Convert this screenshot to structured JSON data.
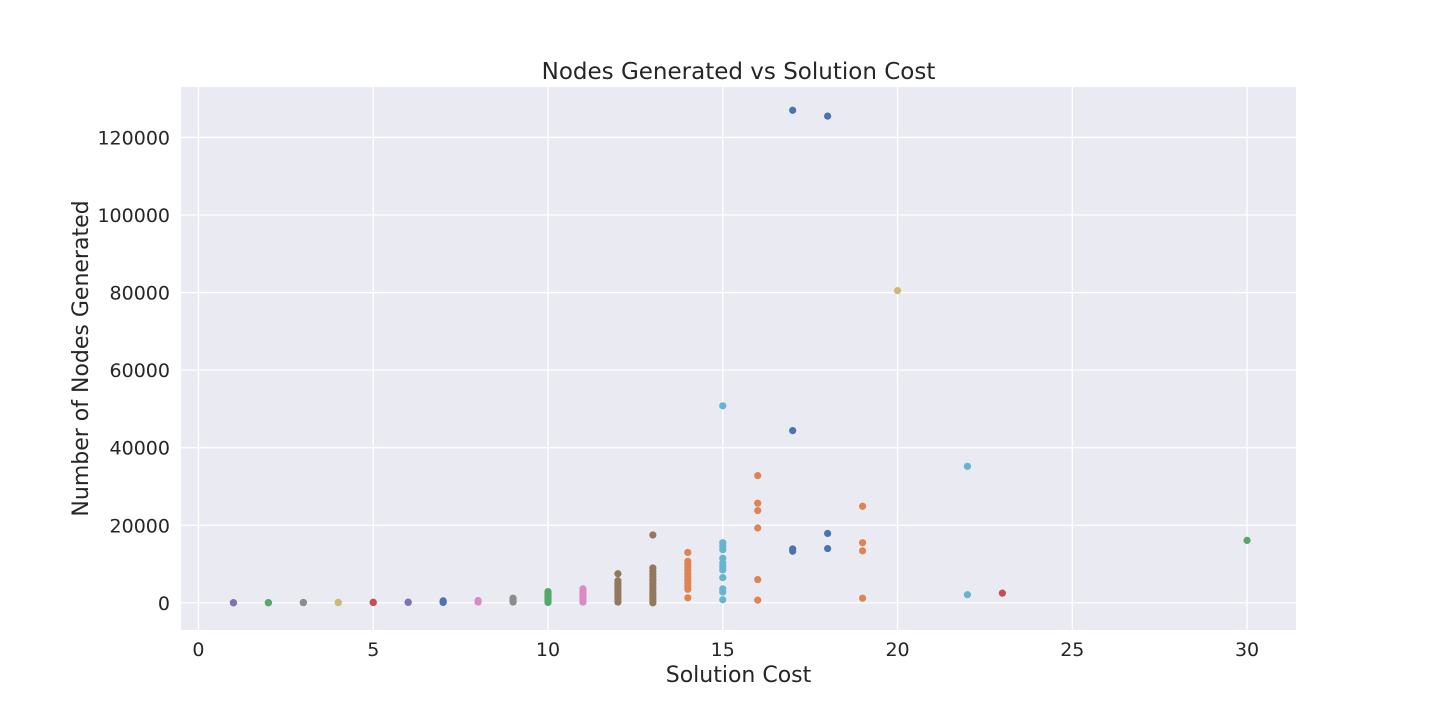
{
  "chart_data": {
    "type": "scatter",
    "title": "Nodes Generated vs Solution Cost",
    "xlabel": "Solution Cost",
    "ylabel": "Number of Nodes Generated",
    "xlim": [
      -0.5,
      31.4
    ],
    "ylim": [
      -7000,
      133000
    ],
    "xticks": [
      0,
      5,
      10,
      15,
      20,
      25,
      30
    ],
    "yticks": [
      0,
      20000,
      40000,
      60000,
      80000,
      100000,
      120000
    ],
    "grid": true,
    "legend": "none",
    "colors": {
      "background": "#eaeaf2",
      "grid": "#ffffff",
      "palette": [
        "#4c72b0",
        "#dd8452",
        "#55a868",
        "#c44e52",
        "#8172b3",
        "#937860",
        "#da8bc3",
        "#8c8c8c",
        "#ccb974",
        "#64b5cd"
      ]
    },
    "series": [
      {
        "color": "#8172b3",
        "points": [
          [
            1,
            0
          ],
          [
            1,
            50
          ]
        ]
      },
      {
        "color": "#55a868",
        "points": [
          [
            2,
            20
          ],
          [
            2,
            60
          ]
        ]
      },
      {
        "color": "#8c8c8c",
        "points": [
          [
            3,
            40
          ],
          [
            3,
            100
          ]
        ]
      },
      {
        "color": "#ccb974",
        "points": [
          [
            4,
            60
          ],
          [
            4,
            120
          ]
        ]
      },
      {
        "color": "#c44e52",
        "points": [
          [
            5,
            80
          ],
          [
            5,
            150
          ]
        ]
      },
      {
        "color": "#8172b3",
        "points": [
          [
            6,
            100
          ],
          [
            6,
            200
          ]
        ]
      },
      {
        "color": "#4c72b0",
        "points": [
          [
            7,
            100
          ],
          [
            7,
            300
          ],
          [
            7,
            500
          ]
        ]
      },
      {
        "color": "#da8bc3",
        "points": [
          [
            8,
            200
          ],
          [
            8,
            400
          ],
          [
            8,
            600
          ]
        ]
      },
      {
        "color": "#8c8c8c",
        "points": [
          [
            9,
            200
          ],
          [
            9,
            500
          ],
          [
            9,
            900
          ],
          [
            9,
            1200
          ]
        ]
      },
      {
        "color": "#55a868",
        "points": [
          [
            10,
            100
          ],
          [
            10,
            500
          ],
          [
            10,
            900
          ],
          [
            10,
            1300
          ],
          [
            10,
            1700
          ],
          [
            10,
            2100
          ],
          [
            10,
            2500
          ],
          [
            10,
            2900
          ]
        ]
      },
      {
        "color": "#da8bc3",
        "points": [
          [
            11,
            200
          ],
          [
            11,
            700
          ],
          [
            11,
            1200
          ],
          [
            11,
            1700
          ],
          [
            11,
            2200
          ],
          [
            11,
            2700
          ],
          [
            11,
            3200
          ],
          [
            11,
            3600
          ]
        ]
      },
      {
        "color": "#937860",
        "points": [
          [
            12,
            200
          ],
          [
            12,
            800
          ],
          [
            12,
            1500
          ],
          [
            12,
            2200
          ],
          [
            12,
            2900
          ],
          [
            12,
            3600
          ],
          [
            12,
            4300
          ],
          [
            12,
            5000
          ],
          [
            12,
            5700
          ],
          [
            12,
            7500
          ]
        ]
      },
      {
        "color": "#937860",
        "points": [
          [
            13,
            0
          ],
          [
            13,
            700
          ],
          [
            13,
            1400
          ],
          [
            13,
            2100
          ],
          [
            13,
            2800
          ],
          [
            13,
            3500
          ],
          [
            13,
            4200
          ],
          [
            13,
            5000
          ],
          [
            13,
            5800
          ],
          [
            13,
            6600
          ],
          [
            13,
            7400
          ],
          [
            13,
            8200
          ],
          [
            13,
            9000
          ],
          [
            13,
            17500
          ]
        ]
      },
      {
        "color": "#dd8452",
        "points": [
          [
            14,
            1300
          ],
          [
            14,
            3500
          ],
          [
            14,
            4300
          ],
          [
            14,
            5100
          ],
          [
            14,
            5900
          ],
          [
            14,
            6700
          ],
          [
            14,
            7500
          ],
          [
            14,
            8300
          ],
          [
            14,
            9100
          ],
          [
            14,
            10000
          ],
          [
            14,
            10700
          ],
          [
            14,
            13000
          ]
        ]
      },
      {
        "color": "#64b5cd",
        "points": [
          [
            15,
            800
          ],
          [
            15,
            2800
          ],
          [
            15,
            3600
          ],
          [
            15,
            6500
          ],
          [
            15,
            8500
          ],
          [
            15,
            9400
          ],
          [
            15,
            10300
          ],
          [
            15,
            11500
          ],
          [
            15,
            13700
          ],
          [
            15,
            14600
          ],
          [
            15,
            15500
          ],
          [
            15,
            50800
          ]
        ]
      },
      {
        "color": "#dd8452",
        "points": [
          [
            16,
            700
          ],
          [
            16,
            6000
          ],
          [
            16,
            19300
          ],
          [
            16,
            23800
          ],
          [
            16,
            25700
          ],
          [
            16,
            32800
          ]
        ]
      },
      {
        "color": "#4c72b0",
        "points": [
          [
            17,
            13300
          ],
          [
            17,
            13900
          ],
          [
            17,
            44400
          ],
          [
            17,
            127000
          ]
        ]
      },
      {
        "color": "#4c72b0",
        "points": [
          [
            18,
            14000
          ],
          [
            18,
            17900
          ],
          [
            18,
            125500
          ]
        ]
      },
      {
        "color": "#dd8452",
        "points": [
          [
            19,
            1200
          ],
          [
            19,
            13400
          ],
          [
            19,
            15500
          ],
          [
            19,
            24900
          ]
        ]
      },
      {
        "color": "#ccb974",
        "points": [
          [
            20,
            80500
          ]
        ]
      },
      {
        "color": "#64b5cd",
        "points": [
          [
            22,
            2100
          ],
          [
            22,
            35200
          ]
        ]
      },
      {
        "color": "#c44e52",
        "points": [
          [
            23,
            2500
          ]
        ]
      },
      {
        "color": "#55a868",
        "points": [
          [
            30,
            16100
          ]
        ]
      }
    ]
  }
}
